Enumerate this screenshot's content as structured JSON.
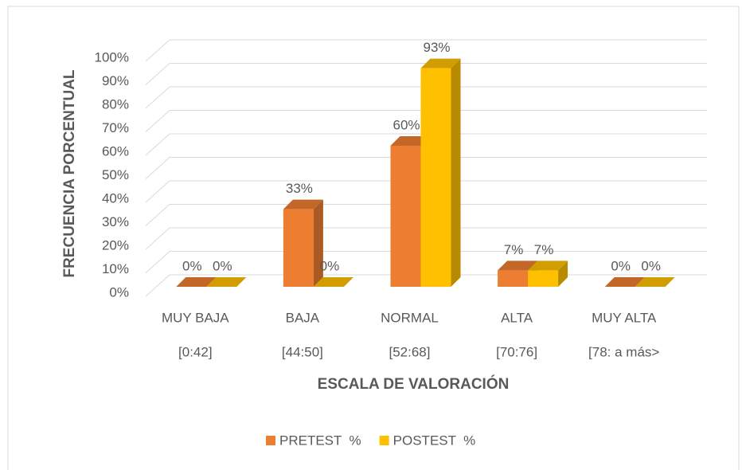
{
  "chart_data": {
    "type": "bar3d",
    "x_label": "ESCALA DE VALORACIÓN",
    "y_label": "FRECUENCIA PORCENTUAL",
    "categories": [
      "MUY BAJA",
      "BAJA",
      "NORMAL",
      "ALTA",
      "MUY ALTA"
    ],
    "category_sublabels": [
      "[0:42]",
      "[44:50]",
      "[52:68]",
      "[70:76]",
      "[78: a más>"
    ],
    "series": [
      {
        "name": "PRETEST  %",
        "color": "#ED7D31",
        "values": [
          0,
          33,
          60,
          7,
          0
        ],
        "value_labels": [
          "0%",
          "33%",
          "60%",
          "7%",
          "0%"
        ]
      },
      {
        "name": "POSTEST  %",
        "color": "#FFC000",
        "values": [
          0,
          0,
          93,
          7,
          0
        ],
        "value_labels": [
          "0%",
          "0%",
          "93%",
          "7%",
          "0%"
        ]
      }
    ],
    "ylim": [
      0,
      100
    ],
    "yticks": [
      {
        "value": 0,
        "label": "0%"
      },
      {
        "value": 10,
        "label": "10%"
      },
      {
        "value": 20,
        "label": "20%"
      },
      {
        "value": 30,
        "label": "30%"
      },
      {
        "value": 40,
        "label": "40%"
      },
      {
        "value": 50,
        "label": "50%"
      },
      {
        "value": 60,
        "label": "60%"
      },
      {
        "value": 70,
        "label": "70%"
      },
      {
        "value": 80,
        "label": "80%"
      },
      {
        "value": 90,
        "label": "90%"
      },
      {
        "value": 100,
        "label": "100%"
      }
    ],
    "grid": true,
    "legend": "bottom"
  }
}
